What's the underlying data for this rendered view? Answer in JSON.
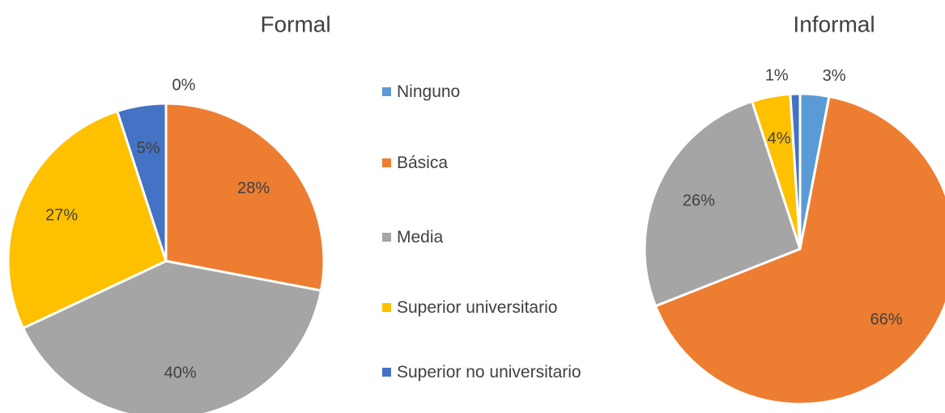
{
  "chart_data": [
    {
      "type": "pie",
      "title": "Formal",
      "categories": [
        "Ninguno",
        "Básica",
        "Media",
        "Superior universitario",
        "Superior no universitario"
      ],
      "colors": [
        "#5b9bd5",
        "#ed7d31",
        "#a5a5a5",
        "#ffc000",
        "#4472c4"
      ],
      "values": [
        0,
        28,
        40,
        27,
        5
      ],
      "value_labels": [
        "0%",
        "28%",
        "40%",
        "27%",
        "5%"
      ]
    },
    {
      "type": "pie",
      "title": "Informal",
      "values": [
        3,
        66,
        26,
        4,
        1
      ],
      "value_labels": [
        "3%",
        "66%",
        "26%",
        "4%",
        "1%"
      ]
    }
  ]
}
